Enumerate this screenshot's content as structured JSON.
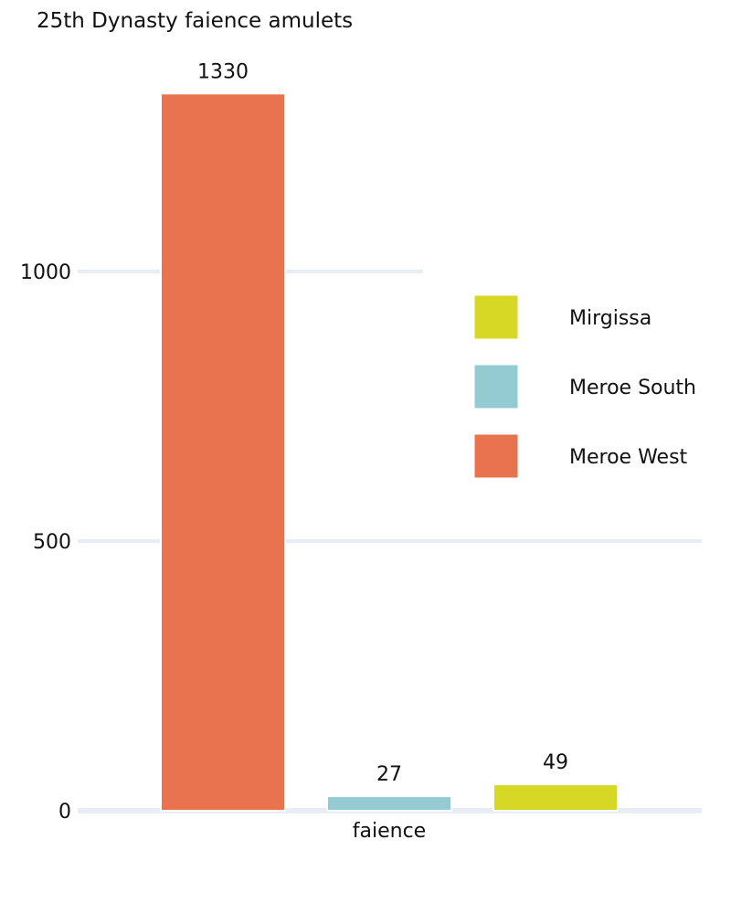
{
  "chart_data": {
    "type": "bar",
    "title": "25th Dynasty faience amulets",
    "categories": [
      "faience"
    ],
    "series": [
      {
        "name": "Meroe West",
        "values": [
          1330
        ],
        "color": "#e8734e"
      },
      {
        "name": "Meroe South",
        "values": [
          27
        ],
        "color": "#94cbd2"
      },
      {
        "name": "Mirgissa",
        "values": [
          49
        ],
        "color": "#d7d825"
      }
    ],
    "ylim": [
      0,
      1400
    ],
    "y_ticks": [
      "0",
      "500",
      "1000"
    ],
    "legend_order": [
      "Mirgissa",
      "Meroe South",
      "Meroe West"
    ],
    "legend_position": "right",
    "grid": true,
    "grid_color": "#e8ecf6"
  }
}
